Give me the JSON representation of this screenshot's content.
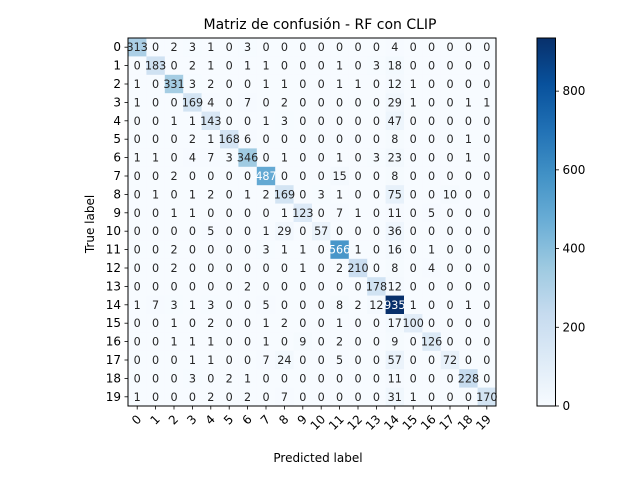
{
  "chart_data": {
    "type": "heatmap",
    "title": "Matriz de confusión - RF con CLIP",
    "xlabel": "Predicted label",
    "ylabel": "True label",
    "x_categories": [
      "0",
      "1",
      "2",
      "3",
      "4",
      "5",
      "6",
      "7",
      "8",
      "9",
      "10",
      "11",
      "12",
      "13",
      "14",
      "15",
      "16",
      "17",
      "18",
      "19"
    ],
    "y_categories": [
      "0",
      "1",
      "2",
      "3",
      "4",
      "5",
      "6",
      "7",
      "8",
      "9",
      "10",
      "11",
      "12",
      "13",
      "14",
      "15",
      "16",
      "17",
      "18",
      "19"
    ],
    "colormap": "Blues",
    "vmin": 0,
    "vmax": 935,
    "colorbar_ticks": [
      0,
      200,
      400,
      600,
      800
    ],
    "matrix": [
      [
        313,
        0,
        2,
        3,
        1,
        0,
        3,
        0,
        0,
        0,
        0,
        0,
        0,
        0,
        4,
        0,
        0,
        0,
        0,
        0
      ],
      [
        0,
        183,
        0,
        2,
        1,
        0,
        1,
        1,
        0,
        0,
        0,
        1,
        0,
        3,
        18,
        0,
        0,
        0,
        0,
        0
      ],
      [
        1,
        0,
        331,
        3,
        2,
        0,
        0,
        1,
        1,
        0,
        0,
        1,
        1,
        0,
        12,
        1,
        0,
        0,
        0,
        0
      ],
      [
        1,
        0,
        0,
        169,
        4,
        0,
        7,
        0,
        2,
        0,
        0,
        0,
        0,
        0,
        29,
        1,
        0,
        0,
        1,
        1
      ],
      [
        0,
        0,
        1,
        1,
        143,
        0,
        0,
        1,
        3,
        0,
        0,
        0,
        0,
        0,
        47,
        0,
        0,
        0,
        0,
        0
      ],
      [
        0,
        0,
        0,
        2,
        1,
        168,
        6,
        0,
        0,
        0,
        0,
        0,
        0,
        0,
        8,
        0,
        0,
        0,
        1,
        0
      ],
      [
        1,
        1,
        0,
        4,
        7,
        3,
        346,
        0,
        1,
        0,
        0,
        1,
        0,
        3,
        23,
        0,
        0,
        0,
        1,
        0
      ],
      [
        0,
        0,
        2,
        0,
        0,
        0,
        0,
        487,
        0,
        0,
        0,
        15,
        0,
        0,
        8,
        0,
        0,
        0,
        0,
        0
      ],
      [
        0,
        1,
        0,
        1,
        2,
        0,
        1,
        2,
        169,
        0,
        3,
        1,
        0,
        0,
        75,
        0,
        0,
        10,
        0,
        0
      ],
      [
        0,
        0,
        1,
        1,
        0,
        0,
        0,
        0,
        1,
        123,
        0,
        7,
        1,
        0,
        11,
        0,
        5,
        0,
        0,
        0
      ],
      [
        0,
        0,
        0,
        0,
        5,
        0,
        0,
        1,
        29,
        0,
        57,
        0,
        0,
        0,
        36,
        0,
        0,
        0,
        0,
        0
      ],
      [
        0,
        0,
        2,
        0,
        0,
        0,
        0,
        3,
        1,
        1,
        0,
        566,
        1,
        0,
        16,
        0,
        1,
        0,
        0,
        0
      ],
      [
        0,
        0,
        2,
        0,
        0,
        0,
        0,
        0,
        0,
        1,
        0,
        2,
        210,
        0,
        8,
        0,
        4,
        0,
        0,
        0
      ],
      [
        0,
        0,
        0,
        0,
        0,
        0,
        2,
        0,
        0,
        0,
        0,
        0,
        0,
        178,
        12,
        0,
        0,
        0,
        0,
        0
      ],
      [
        1,
        7,
        3,
        1,
        3,
        0,
        0,
        5,
        0,
        0,
        0,
        8,
        2,
        12,
        935,
        1,
        0,
        0,
        1,
        0
      ],
      [
        0,
        0,
        1,
        0,
        2,
        0,
        0,
        1,
        2,
        0,
        0,
        1,
        0,
        0,
        17,
        100,
        0,
        0,
        0,
        0
      ],
      [
        0,
        0,
        1,
        1,
        1,
        0,
        0,
        1,
        0,
        9,
        0,
        2,
        0,
        0,
        9,
        0,
        126,
        0,
        0,
        0
      ],
      [
        0,
        0,
        0,
        1,
        1,
        0,
        0,
        7,
        24,
        0,
        0,
        5,
        0,
        0,
        57,
        0,
        0,
        72,
        0,
        0
      ],
      [
        0,
        0,
        0,
        3,
        0,
        2,
        1,
        0,
        0,
        0,
        0,
        0,
        0,
        0,
        11,
        0,
        0,
        0,
        228,
        0
      ],
      [
        1,
        0,
        0,
        0,
        2,
        0,
        2,
        0,
        7,
        0,
        0,
        0,
        0,
        0,
        31,
        1,
        0,
        0,
        0,
        170
      ]
    ]
  }
}
